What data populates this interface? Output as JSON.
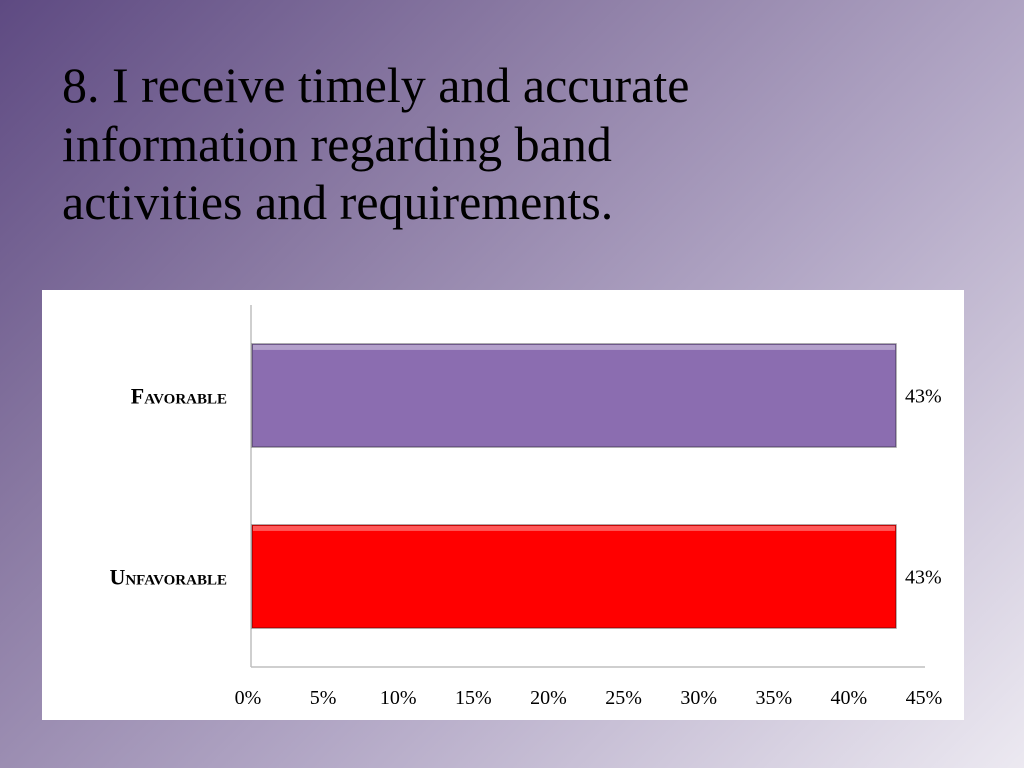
{
  "slide": {
    "title": "8. I receive timely and accurate\ninformation regarding band\nactivities and requirements."
  },
  "chart_data": {
    "type": "bar",
    "orientation": "horizontal",
    "categories": [
      "Favorable",
      "Unfavorable"
    ],
    "values": [
      43,
      43
    ],
    "data_labels": [
      "43%",
      "43%"
    ],
    "colors": [
      "#8b6db0",
      "#ff0000"
    ],
    "xlim": [
      0,
      45
    ],
    "x_ticks": [
      0,
      5,
      10,
      15,
      20,
      25,
      30,
      35,
      40,
      45
    ],
    "x_tick_labels": [
      "0%",
      "5%",
      "10%",
      "15%",
      "20%",
      "25%",
      "30%",
      "35%",
      "40%",
      "45%"
    ],
    "title": "",
    "xlabel": "",
    "ylabel": "",
    "grid": false,
    "legend": false
  }
}
